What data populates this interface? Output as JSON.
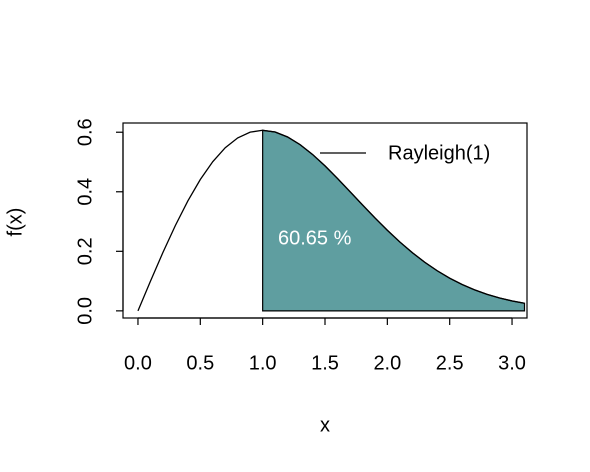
{
  "chart_data": {
    "type": "area_line",
    "x_label": "x",
    "y_label": "f(x)",
    "x": [
      0,
      0.1,
      0.2,
      0.3,
      0.4,
      0.5,
      0.6,
      0.7,
      0.8,
      0.9,
      1.0,
      1.1,
      1.2,
      1.3,
      1.4,
      1.5,
      1.6,
      1.7,
      1.8,
      1.9,
      2.0,
      2.1,
      2.2,
      2.3,
      2.4,
      2.5,
      2.6,
      2.7,
      2.8,
      2.9,
      3.0,
      3.1
    ],
    "series": [
      {
        "name": "Rayleigh(1)",
        "color": "#000000",
        "fill": "#5f9ea0",
        "values": [
          0,
          0.0995,
          0.196,
          0.2868,
          0.3692,
          0.4412,
          0.5012,
          0.5479,
          0.5809,
          0.6003,
          0.6065,
          0.6007,
          0.5841,
          0.5584,
          0.5254,
          0.487,
          0.4449,
          0.4008,
          0.3562,
          0.3125,
          0.2707,
          0.2315,
          0.1956,
          0.1633,
          0.1347,
          0.1098,
          0.0885,
          0.0705,
          0.0555,
          0.0433,
          0.0333,
          0.0254
        ]
      }
    ],
    "shade_from": 1.0,
    "annotation": "60.65 %",
    "xlim": [
      -0.12,
      3.12
    ],
    "ylim": [
      -0.024,
      0.631
    ],
    "xticks": [
      {
        "value": 0,
        "label": "0.0"
      },
      0.5,
      {
        "value": 1,
        "label": "1.0"
      },
      1.5,
      {
        "value": 2,
        "label": "2.0"
      },
      2.5,
      {
        "value": 3,
        "label": "3.0"
      }
    ],
    "yticks": [
      {
        "value": 0,
        "label": "0.0"
      },
      {
        "value": 0.2,
        "label": "0.2"
      },
      {
        "value": 0.4,
        "label": "0.4"
      },
      {
        "value": 0.6,
        "label": "0.6"
      }
    ],
    "legend": "topright"
  }
}
